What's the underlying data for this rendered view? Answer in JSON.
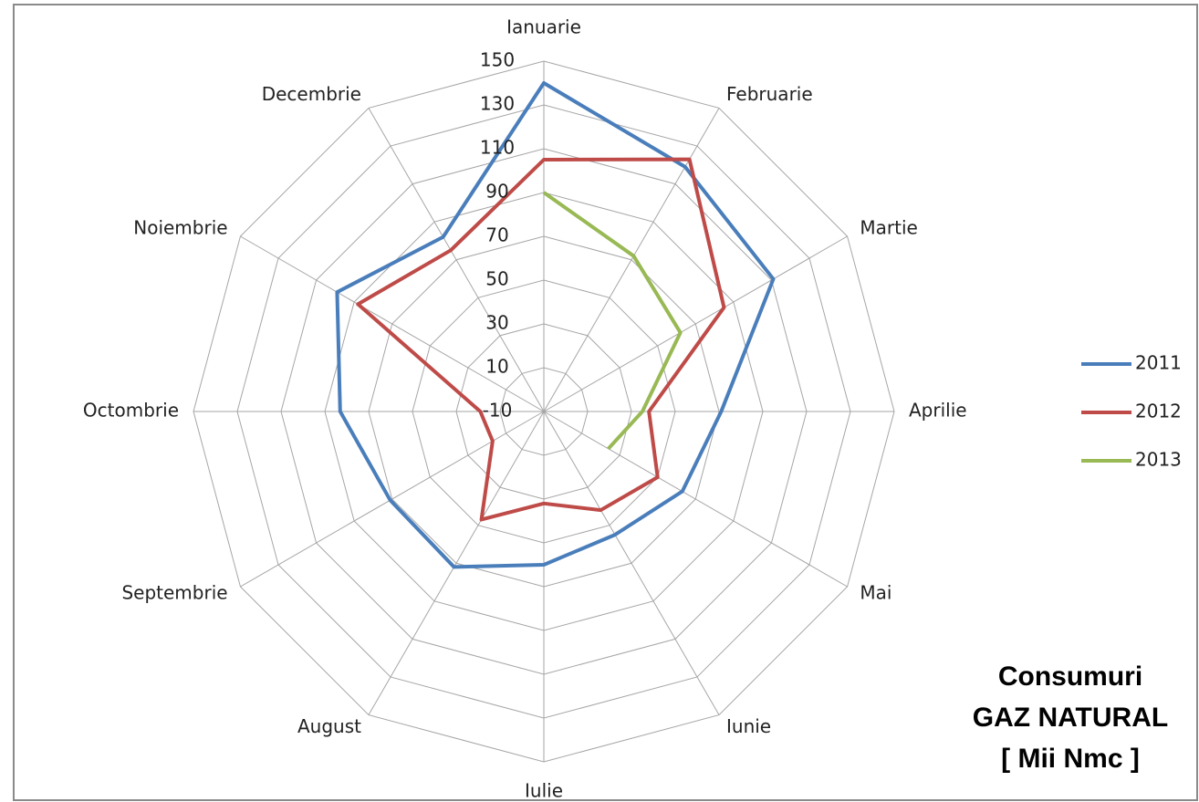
{
  "chart_data": {
    "type": "radar",
    "title_lines": [
      "Consumuri",
      "GAZ NATURAL",
      "[ Mii Nmc ]"
    ],
    "categories": [
      "Ianuarie",
      "Februarie",
      "Martie",
      "Aprilie",
      "Mai",
      "Iunie",
      "Iulie",
      "August",
      "Septembrie",
      "Octombrie",
      "Noiembrie",
      "Decembrie"
    ],
    "series": [
      {
        "name": "2011",
        "color": "#4a7ebb",
        "values": [
          140,
          119,
          111,
          71,
          63,
          55,
          60,
          72,
          71,
          83,
          99,
          82
        ]
      },
      {
        "name": "2012",
        "color": "#be4b48",
        "values": [
          105,
          123,
          85,
          38,
          50,
          42,
          32,
          47,
          17,
          19,
          88,
          75
        ]
      },
      {
        "name": "2013",
        "color": "#98b954",
        "values": [
          90,
          72,
          62,
          35,
          24,
          null,
          null,
          null,
          null,
          null,
          null,
          null
        ]
      }
    ],
    "ylim": [
      -10,
      150
    ],
    "yticks": [
      -10,
      10,
      30,
      50,
      70,
      90,
      110,
      130,
      150
    ],
    "grid": true,
    "legend": "right"
  }
}
